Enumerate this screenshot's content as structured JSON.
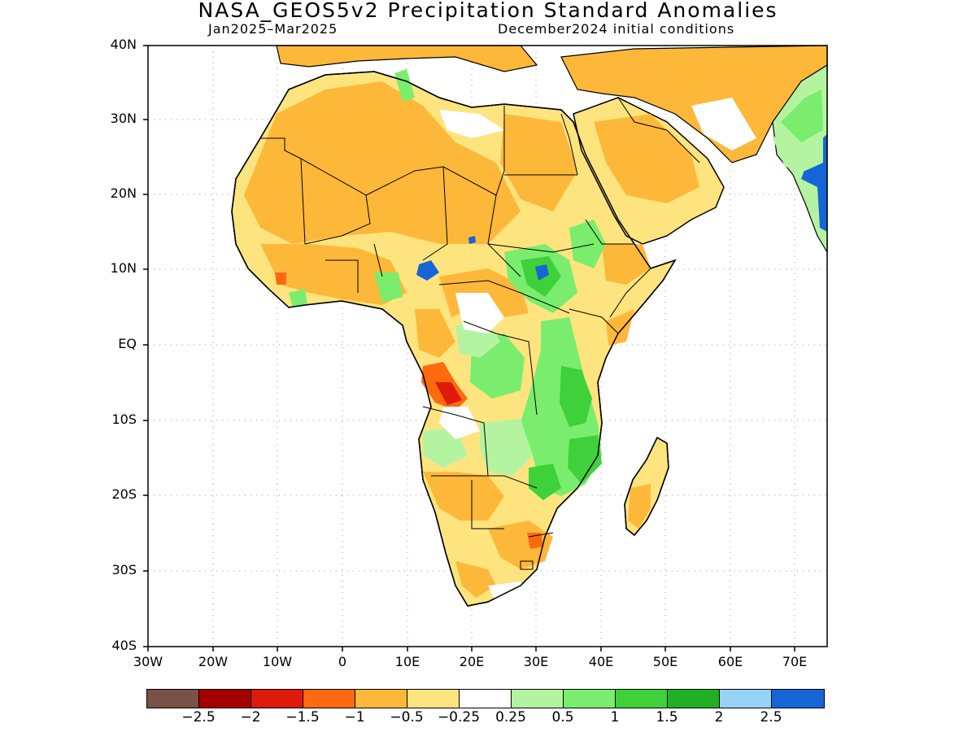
{
  "header": {
    "title": "NASA_GEOS5v2 Precipitation Standard Anomalies",
    "period": "Jan2025–Mar2025",
    "init": "December2024 initial conditions"
  },
  "axes": {
    "y_labels": [
      "40N",
      "30N",
      "20N",
      "10N",
      "EQ",
      "10S",
      "20S",
      "30S",
      "40S"
    ],
    "x_labels": [
      "30W",
      "20W",
      "10W",
      "0",
      "10E",
      "20E",
      "30E",
      "40E",
      "50E",
      "60E",
      "70E"
    ]
  },
  "colorbar": {
    "colors": [
      "#7a5145",
      "#a50000",
      "#dd1a0c",
      "#fe6a0e",
      "#fdb83a",
      "#fee47e",
      "#ffffff",
      "#b4f4a0",
      "#7aed6e",
      "#3ed13a",
      "#21b024",
      "#96d3f7",
      "#1665d6"
    ],
    "labels": [
      "−2.5",
      "−2",
      "−1.5",
      "−1",
      "−0.5",
      "−0.25",
      "0.25",
      "0.5",
      "1",
      "1.5",
      "2",
      "2.5"
    ]
  },
  "map_region": {
    "lon_range": [
      -30,
      75
    ],
    "lat_range": [
      -40,
      40
    ],
    "colors": {
      "dry_light": "#fee47e",
      "dry": "#fdb83a",
      "dry_strong": "#fe6a0e",
      "dry_very": "#dd1a0c",
      "wet_light": "#b4f4a0",
      "wet": "#7aed6e",
      "wet_strong": "#3ed13a",
      "wet_very": "#1665d6"
    }
  }
}
